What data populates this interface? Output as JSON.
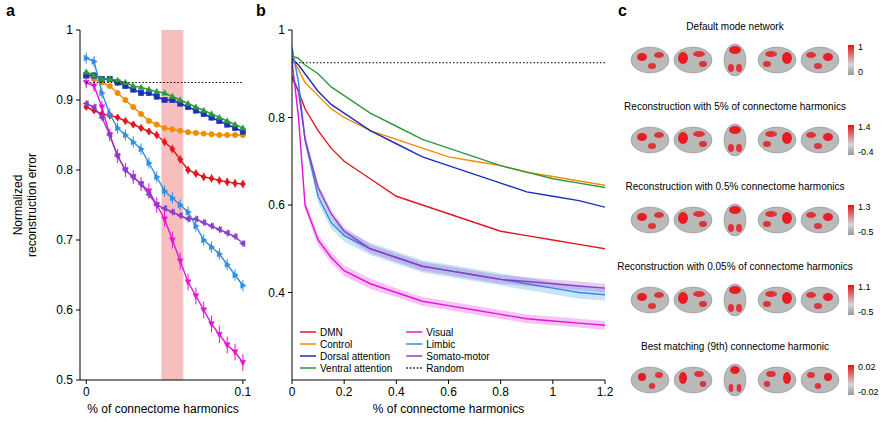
{
  "chart_data": [
    {
      "panel_label": "a",
      "type": "errorbar",
      "x_label": "% of connectome harmonics",
      "y_label": "Normalized reconstruction error",
      "xlim": [
        -0.004,
        0.102
      ],
      "ylim": [
        0.5,
        1
      ],
      "xticks": [
        0,
        0.1
      ],
      "yticks": [
        0.5,
        0.6,
        0.7,
        0.8,
        0.9,
        1
      ],
      "highlight": [
        0.048,
        0.062
      ],
      "x": [
        0,
        0.005,
        0.01,
        0.015,
        0.02,
        0.025,
        0.03,
        0.035,
        0.04,
        0.045,
        0.05,
        0.055,
        0.06,
        0.065,
        0.07,
        0.075,
        0.08,
        0.085,
        0.09,
        0.095,
        0.1
      ],
      "series": [
        {
          "color": "#e3161d",
          "marker": "diamond",
          "values": [
            0.89,
            0.885,
            0.88,
            0.878,
            0.875,
            0.87,
            0.865,
            0.86,
            0.855,
            0.85,
            0.84,
            0.83,
            0.815,
            0.8,
            0.795,
            0.79,
            0.788,
            0.785,
            0.783,
            0.781,
            0.78
          ],
          "errors": [
            0.004,
            0.004,
            0.004,
            0.005,
            0.005,
            0.005,
            0.005,
            0.005,
            0.005,
            0.006,
            0.006,
            0.006,
            0.006,
            0.006,
            0.006,
            0.006,
            0.006,
            0.006,
            0.006,
            0.006,
            0.006
          ]
        },
        {
          "color": "#f08c00",
          "marker": "circle",
          "values": [
            0.935,
            0.93,
            0.925,
            0.92,
            0.91,
            0.9,
            0.89,
            0.88,
            0.87,
            0.865,
            0.86,
            0.858,
            0.856,
            0.854,
            0.853,
            0.852,
            0.851,
            0.85,
            0.85,
            0.85,
            0.85
          ],
          "errors": [
            0.004,
            0.004,
            0.004,
            0.004,
            0.004,
            0.004,
            0.004,
            0.004,
            0.004,
            0.004,
            0.004,
            0.004,
            0.004,
            0.004,
            0.004,
            0.004,
            0.004,
            0.004,
            0.004,
            0.004,
            0.004
          ]
        },
        {
          "color": "#1c2dbf",
          "marker": "square",
          "values": [
            0.935,
            0.935,
            0.93,
            0.93,
            0.925,
            0.92,
            0.915,
            0.91,
            0.91,
            0.905,
            0.9,
            0.9,
            0.895,
            0.89,
            0.885,
            0.88,
            0.875,
            0.87,
            0.865,
            0.86,
            0.855
          ],
          "errors": [
            0.004,
            0.004,
            0.004,
            0.004,
            0.004,
            0.004,
            0.004,
            0.004,
            0.004,
            0.004,
            0.004,
            0.004,
            0.004,
            0.004,
            0.004,
            0.004,
            0.004,
            0.004,
            0.004,
            0.004,
            0.004
          ]
        },
        {
          "color": "#2a9a3a",
          "marker": "triangle-up",
          "values": [
            0.94,
            0.935,
            0.93,
            0.93,
            0.928,
            0.925,
            0.92,
            0.918,
            0.915,
            0.912,
            0.91,
            0.905,
            0.9,
            0.895,
            0.89,
            0.885,
            0.88,
            0.875,
            0.87,
            0.865,
            0.86
          ],
          "errors": [
            0.003,
            0.003,
            0.003,
            0.003,
            0.003,
            0.003,
            0.003,
            0.003,
            0.003,
            0.003,
            0.003,
            0.003,
            0.003,
            0.003,
            0.003,
            0.003,
            0.003,
            0.003,
            0.003,
            0.003,
            0.003
          ]
        },
        {
          "color": "#e514d9",
          "marker": "triangle-down",
          "values": [
            0.925,
            0.92,
            0.89,
            0.85,
            0.82,
            0.8,
            0.79,
            0.78,
            0.77,
            0.75,
            0.73,
            0.7,
            0.67,
            0.64,
            0.62,
            0.6,
            0.58,
            0.565,
            0.55,
            0.54,
            0.525
          ],
          "errors": [
            0.008,
            0.008,
            0.009,
            0.009,
            0.01,
            0.01,
            0.01,
            0.01,
            0.011,
            0.011,
            0.011,
            0.012,
            0.012,
            0.012,
            0.012,
            0.012,
            0.012,
            0.012,
            0.012,
            0.012,
            0.012
          ]
        },
        {
          "color": "#2f8ee0",
          "marker": "triangle-right",
          "values": [
            0.96,
            0.955,
            0.91,
            0.88,
            0.86,
            0.85,
            0.84,
            0.83,
            0.81,
            0.79,
            0.77,
            0.76,
            0.75,
            0.74,
            0.72,
            0.7,
            0.69,
            0.68,
            0.665,
            0.65,
            0.635
          ],
          "errors": [
            0.008,
            0.008,
            0.008,
            0.008,
            0.008,
            0.008,
            0.008,
            0.008,
            0.008,
            0.008,
            0.008,
            0.008,
            0.008,
            0.008,
            0.008,
            0.008,
            0.008,
            0.008,
            0.008,
            0.008,
            0.008
          ]
        },
        {
          "color": "#8a3fc8",
          "marker": "triangle-left",
          "values": [
            0.895,
            0.89,
            0.875,
            0.85,
            0.82,
            0.8,
            0.79,
            0.78,
            0.765,
            0.75,
            0.745,
            0.74,
            0.735,
            0.73,
            0.73,
            0.725,
            0.72,
            0.715,
            0.71,
            0.705,
            0.695
          ],
          "errors": [
            0.005,
            0.005,
            0.005,
            0.005,
            0.005,
            0.005,
            0.005,
            0.005,
            0.005,
            0.005,
            0.005,
            0.005,
            0.005,
            0.005,
            0.005,
            0.005,
            0.005,
            0.005,
            0.005,
            0.005,
            0.005
          ]
        },
        {
          "color": "#000000",
          "line_style": "dotted",
          "x": [
            0,
            0.1
          ],
          "values": [
            0.925,
            0.925
          ]
        }
      ]
    },
    {
      "panel_label": "b",
      "type": "line",
      "x_label": "% of connectome harmonics",
      "xlim": [
        0,
        1.2
      ],
      "ylim": [
        0.2,
        1
      ],
      "xticks": [
        0,
        0.2,
        0.4,
        0.6,
        0.8,
        1,
        1.2
      ],
      "yticks": [
        0.4,
        0.6,
        0.8,
        1
      ],
      "legend": "lower left",
      "x": [
        0,
        0.025,
        0.05,
        0.1,
        0.15,
        0.2,
        0.3,
        0.4,
        0.5,
        0.6,
        0.7,
        0.8,
        0.9,
        1,
        1.1,
        1.2
      ],
      "series": [
        {
          "name": "DMN",
          "color": "#e3161d",
          "values": [
            0.89,
            0.86,
            0.82,
            0.77,
            0.73,
            0.7,
            0.66,
            0.62,
            0.6,
            0.58,
            0.56,
            0.54,
            0.53,
            0.52,
            0.51,
            0.5
          ]
        },
        {
          "name": "Control",
          "color": "#f08c00",
          "values": [
            0.935,
            0.91,
            0.88,
            0.85,
            0.82,
            0.8,
            0.77,
            0.75,
            0.73,
            0.71,
            0.7,
            0.69,
            0.675,
            0.665,
            0.655,
            0.645
          ]
        },
        {
          "name": "Dorsal attention",
          "color": "#1c2dbf",
          "values": [
            0.935,
            0.92,
            0.9,
            0.86,
            0.83,
            0.81,
            0.77,
            0.74,
            0.71,
            0.69,
            0.67,
            0.65,
            0.63,
            0.62,
            0.61,
            0.595
          ]
        },
        {
          "name": "Ventral attention",
          "color": "#2a9a3a",
          "values": [
            0.94,
            0.935,
            0.92,
            0.9,
            0.87,
            0.85,
            0.81,
            0.78,
            0.75,
            0.73,
            0.71,
            0.69,
            0.675,
            0.66,
            0.65,
            0.64
          ]
        },
        {
          "name": "Visual",
          "color": "#e514d9",
          "values": [
            0.93,
            0.8,
            0.6,
            0.52,
            0.48,
            0.45,
            0.42,
            0.4,
            0.38,
            0.37,
            0.36,
            0.35,
            0.34,
            0.335,
            0.33,
            0.325
          ],
          "errors": [
            0.01,
            0.01,
            0.012,
            0.012,
            0.012,
            0.012,
            0.012,
            0.01,
            0.01,
            0.01,
            0.01,
            0.01,
            0.01,
            0.01,
            0.01,
            0.01
          ]
        },
        {
          "name": "Limbic",
          "color": "#2f8ee0",
          "values": [
            0.96,
            0.88,
            0.75,
            0.62,
            0.56,
            0.53,
            0.5,
            0.48,
            0.46,
            0.45,
            0.44,
            0.43,
            0.42,
            0.41,
            0.4,
            0.395
          ],
          "errors": [
            0.01,
            0.012,
            0.014,
            0.014,
            0.014,
            0.014,
            0.014,
            0.014,
            0.014,
            0.014,
            0.014,
            0.014,
            0.014,
            0.014,
            0.014,
            0.014
          ]
        },
        {
          "name": "Somato-motor",
          "color": "#8a3fc8",
          "values": [
            0.895,
            0.86,
            0.75,
            0.64,
            0.58,
            0.54,
            0.5,
            0.48,
            0.46,
            0.45,
            0.44,
            0.43,
            0.425,
            0.42,
            0.415,
            0.41
          ],
          "errors": [
            0.006,
            0.008,
            0.01,
            0.01,
            0.01,
            0.01,
            0.01,
            0.01,
            0.01,
            0.01,
            0.01,
            0.01,
            0.01,
            0.01,
            0.01,
            0.01
          ]
        },
        {
          "name": "Random",
          "color": "#000000",
          "line_style": "dotted",
          "x": [
            0,
            1.2
          ],
          "values": [
            0.925,
            0.925
          ]
        }
      ]
    },
    {
      "panel_label": "c",
      "type": "brain_maps",
      "maps": [
        {
          "title": "Default mode network",
          "colorbar_range": [
            0,
            1
          ]
        },
        {
          "title": "Reconstruction with 5% of connectome harmonics",
          "colorbar_range": [
            -0.4,
            1.4
          ]
        },
        {
          "title": "Reconstruction with 0.5% connectome harmonics",
          "colorbar_range": [
            -0.5,
            1.3
          ]
        },
        {
          "title": "Reconstruction with 0.05% of connectome harmonics",
          "colorbar_range": [
            -0.5,
            1.1
          ]
        },
        {
          "title": "Best matching (9th) connectome harmonic",
          "colorbar_range": [
            -0.02,
            0.02
          ]
        }
      ]
    }
  ]
}
